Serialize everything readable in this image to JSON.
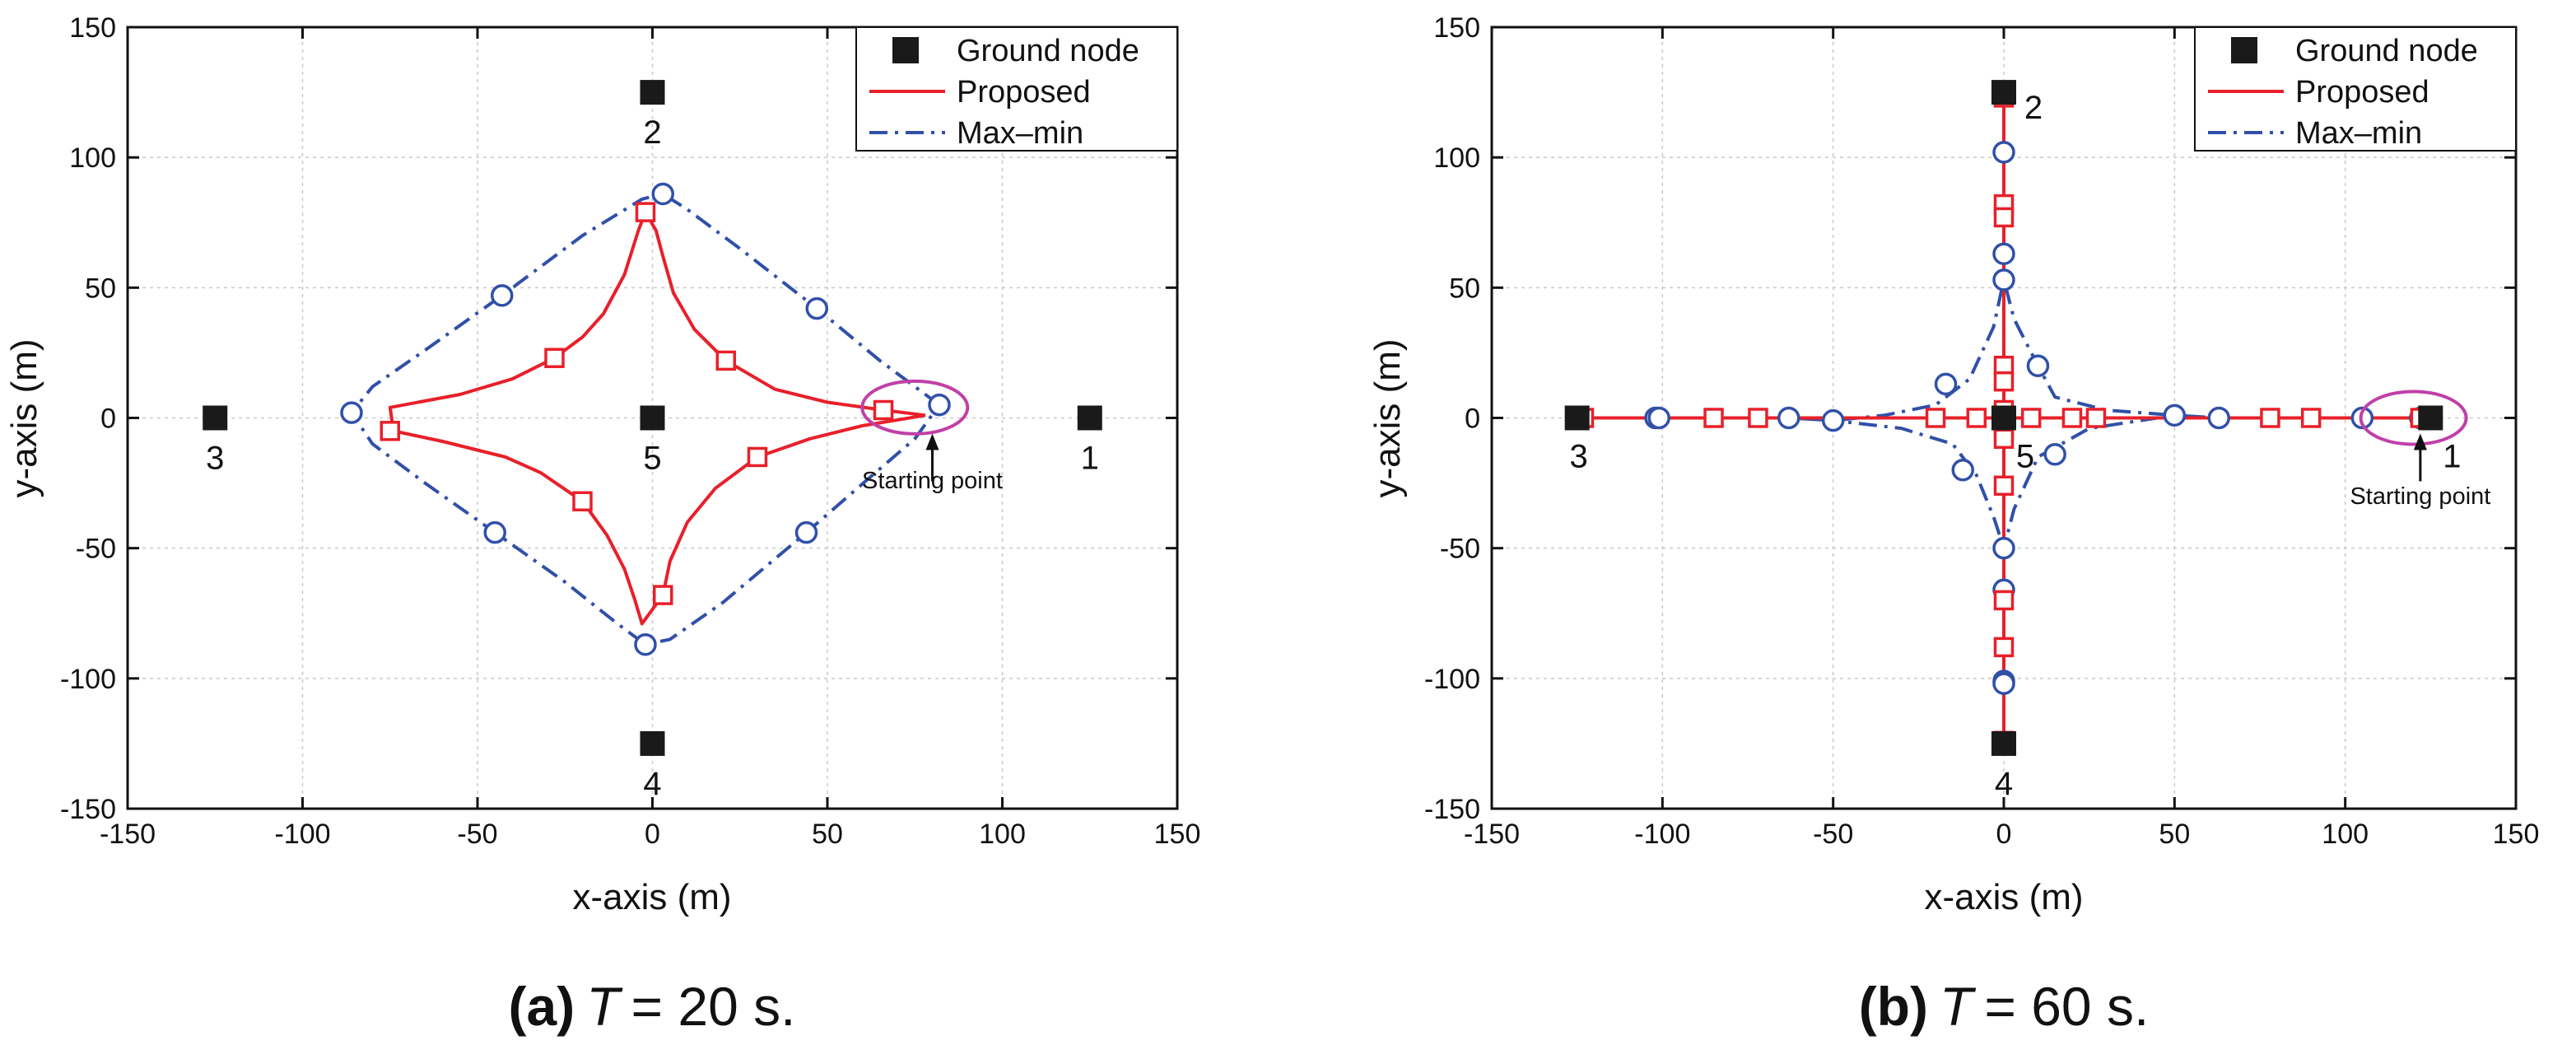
{
  "chart_data": [
    {
      "type": "scatter",
      "panel_label": "(a)",
      "caption": {
        "label": "(a)",
        "var": "T",
        "eq": "= 20 s."
      },
      "xlabel": "x-axis (m)",
      "ylabel": "y-axis (m)",
      "xlim": [
        -150,
        150
      ],
      "ylim": [
        -150,
        150
      ],
      "xticks": [
        -150,
        -100,
        -50,
        0,
        50,
        100,
        150
      ],
      "yticks": [
        -150,
        -100,
        -50,
        0,
        50,
        100,
        150
      ],
      "grid": true,
      "legend": {
        "position": "top-right",
        "entries": [
          {
            "label": "Ground node",
            "kind": "square"
          },
          {
            "label": "Proposed",
            "kind": "solid",
            "color": "#e8202a"
          },
          {
            "label": "Max–min",
            "kind": "dashdot",
            "color": "#3050a8"
          }
        ]
      },
      "ground_nodes": [
        {
          "id": "1",
          "x": 125,
          "y": 0
        },
        {
          "id": "2",
          "x": 0,
          "y": 125
        },
        {
          "id": "3",
          "x": -125,
          "y": 0
        },
        {
          "id": "4",
          "x": 0,
          "y": -125
        },
        {
          "id": "5",
          "x": 0,
          "y": 0
        }
      ],
      "series": [
        {
          "name": "Max–min",
          "color": "#3050a8",
          "style": "dashdot",
          "marker": "circle",
          "line": [
            [
              82,
              5
            ],
            [
              65,
              22
            ],
            [
              47,
              42
            ],
            [
              25,
              65
            ],
            [
              10,
              80
            ],
            [
              3,
              86
            ],
            [
              -3,
              84
            ],
            [
              -20,
              70
            ],
            [
              -43,
              47
            ],
            [
              -65,
              26
            ],
            [
              -80,
              12
            ],
            [
              -86,
              2
            ],
            [
              -80,
              -10
            ],
            [
              -65,
              -25
            ],
            [
              -45,
              -44
            ],
            [
              -25,
              -63
            ],
            [
              -10,
              -79
            ],
            [
              -2,
              -87
            ],
            [
              5,
              -85
            ],
            [
              20,
              -71
            ],
            [
              44,
              -44
            ],
            [
              62,
              -23
            ],
            [
              75,
              -8
            ],
            [
              82,
              5
            ]
          ],
          "markers": [
            [
              82,
              5
            ],
            [
              47,
              42
            ],
            [
              3,
              86
            ],
            [
              -43,
              47
            ],
            [
              -86,
              2
            ],
            [
              -45,
              -44
            ],
            [
              -2,
              -87
            ],
            [
              44,
              -44
            ]
          ]
        },
        {
          "name": "Proposed",
          "color": "#e8202a",
          "style": "solid",
          "marker": "square",
          "line": [
            [
              78,
              1
            ],
            [
              66,
              3
            ],
            [
              50,
              6
            ],
            [
              35,
              11
            ],
            [
              21,
              22
            ],
            [
              12,
              34
            ],
            [
              6,
              48
            ],
            [
              3,
              62
            ],
            [
              1,
              72
            ],
            [
              -2,
              79
            ],
            [
              -4,
              72
            ],
            [
              -8,
              55
            ],
            [
              -14,
              40
            ],
            [
              -20,
              31
            ],
            [
              -28,
              23
            ],
            [
              -40,
              15
            ],
            [
              -55,
              9
            ],
            [
              -75,
              4
            ],
            [
              -74,
              -5
            ],
            [
              -60,
              -9
            ],
            [
              -42,
              -15
            ],
            [
              -32,
              -21
            ],
            [
              -20,
              -32
            ],
            [
              -13,
              -45
            ],
            [
              -8,
              -58
            ],
            [
              -5,
              -70
            ],
            [
              -3,
              -79
            ],
            [
              3,
              -68
            ],
            [
              5,
              -55
            ],
            [
              10,
              -40
            ],
            [
              18,
              -27
            ],
            [
              30,
              -15
            ],
            [
              45,
              -8
            ],
            [
              60,
              -3
            ],
            [
              78,
              1
            ]
          ],
          "markers": [
            [
              66,
              3
            ],
            [
              21,
              22
            ],
            [
              -2,
              79
            ],
            [
              -28,
              23
            ],
            [
              -75,
              -5
            ],
            [
              -20,
              -32
            ],
            [
              3,
              -68
            ],
            [
              30,
              -15
            ]
          ]
        }
      ],
      "annotations": [
        {
          "text": "Starting point",
          "x": 80,
          "y": -27,
          "arrow_to": [
            80,
            -6
          ],
          "ellipse_center": [
            75,
            4
          ]
        }
      ]
    },
    {
      "type": "scatter",
      "panel_label": "(b)",
      "caption": {
        "label": "(b)",
        "var": "T",
        "eq": "= 60 s."
      },
      "xlabel": "x-axis (m)",
      "ylabel": "y-axis (m)",
      "xlim": [
        -150,
        150
      ],
      "ylim": [
        -150,
        150
      ],
      "xticks": [
        -150,
        -100,
        -50,
        0,
        50,
        100,
        150
      ],
      "yticks": [
        -150,
        -100,
        -50,
        0,
        50,
        100,
        150
      ],
      "grid": true,
      "legend": {
        "position": "top-right",
        "entries": [
          {
            "label": "Ground node",
            "kind": "square"
          },
          {
            "label": "Proposed",
            "kind": "solid",
            "color": "#e8202a"
          },
          {
            "label": "Max–min",
            "kind": "dashdot",
            "color": "#3050a8"
          }
        ]
      },
      "ground_nodes": [
        {
          "id": "1",
          "x": 125,
          "y": 0
        },
        {
          "id": "2",
          "x": 0,
          "y": 125
        },
        {
          "id": "3",
          "x": -125,
          "y": 0
        },
        {
          "id": "4",
          "x": 0,
          "y": -125
        },
        {
          "id": "5",
          "x": 0,
          "y": 0
        }
      ],
      "series": [
        {
          "name": "Max–min",
          "color": "#3050a8",
          "style": "dashdot",
          "marker": "circle",
          "line": [
            [
              122,
              0
            ],
            [
              105,
              0
            ],
            [
              80,
              0
            ],
            [
              63,
              0
            ],
            [
              50,
              1
            ],
            [
              30,
              3
            ],
            [
              15,
              8
            ],
            [
              10,
              20
            ],
            [
              3,
              38
            ],
            [
              0,
              53
            ],
            [
              0,
              63
            ],
            [
              0,
              82
            ],
            [
              0,
              102
            ],
            [
              0,
              123
            ],
            [
              0,
              102
            ],
            [
              0,
              82
            ],
            [
              0,
              63
            ],
            [
              0,
              53
            ],
            [
              -3,
              35
            ],
            [
              -10,
              15
            ],
            [
              -20,
              5
            ],
            [
              -35,
              1
            ],
            [
              -50,
              -1
            ],
            [
              -63,
              0
            ],
            [
              -80,
              0
            ],
            [
              -102,
              0
            ],
            [
              -122,
              0
            ],
            [
              -102,
              0
            ],
            [
              -80,
              0
            ],
            [
              -63,
              0
            ],
            [
              -50,
              -1
            ],
            [
              -30,
              -4
            ],
            [
              -15,
              -10
            ],
            [
              -8,
              -22
            ],
            [
              -3,
              -38
            ],
            [
              0,
              -50
            ],
            [
              0,
              -66
            ],
            [
              0,
              -80
            ],
            [
              0,
              -101
            ],
            [
              0,
              -122
            ],
            [
              0,
              -101
            ],
            [
              0,
              -80
            ],
            [
              0,
              -66
            ],
            [
              0,
              -50
            ],
            [
              3,
              -35
            ],
            [
              10,
              -15
            ],
            [
              25,
              -4
            ],
            [
              50,
              1
            ],
            [
              63,
              0
            ],
            [
              80,
              0
            ],
            [
              105,
              0
            ],
            [
              122,
              0
            ]
          ],
          "markers": [
            [
              122,
              0
            ],
            [
              105,
              0
            ],
            [
              63,
              0
            ],
            [
              50,
              1
            ],
            [
              10,
              20
            ],
            [
              0,
              53
            ],
            [
              0,
              63
            ],
            [
              0,
              102
            ],
            [
              -17,
              13
            ],
            [
              -63,
              0
            ],
            [
              -50,
              -1
            ],
            [
              -102,
              0
            ],
            [
              -101,
              0
            ],
            [
              -12,
              -20
            ],
            [
              0,
              -50
            ],
            [
              0,
              -66
            ],
            [
              0,
              -101
            ],
            [
              0,
              -102
            ],
            [
              15,
              -14
            ]
          ]
        },
        {
          "name": "Proposed",
          "color": "#e8202a",
          "style": "solid",
          "marker": "square",
          "line": [
            [
              124,
              0
            ],
            [
              -124,
              0
            ],
            [
              0,
              0
            ],
            [
              0,
              123
            ],
            [
              0,
              -124
            ],
            [
              0,
              0
            ]
          ],
          "markers": [
            [
              124,
              0
            ],
            [
              122,
              0
            ],
            [
              90,
              0
            ],
            [
              78,
              0
            ],
            [
              27,
              0
            ],
            [
              20,
              0
            ],
            [
              8,
              0
            ],
            [
              -8,
              0
            ],
            [
              -20,
              0
            ],
            [
              -85,
              0
            ],
            [
              -72,
              0
            ],
            [
              -123,
              0
            ],
            [
              0,
              123
            ],
            [
              0,
              82
            ],
            [
              0,
              77
            ],
            [
              0,
              20
            ],
            [
              0,
              14
            ],
            [
              0,
              3
            ],
            [
              0,
              -3
            ],
            [
              0,
              -8
            ],
            [
              0,
              -26
            ],
            [
              0,
              -70
            ],
            [
              0,
              -88
            ],
            [
              0,
              -124
            ]
          ]
        }
      ],
      "annotations": [
        {
          "text": "Starting point",
          "x": 122,
          "y": -33,
          "arrow_to": [
            122,
            -6
          ],
          "ellipse_center": [
            120,
            0
          ]
        }
      ]
    }
  ]
}
